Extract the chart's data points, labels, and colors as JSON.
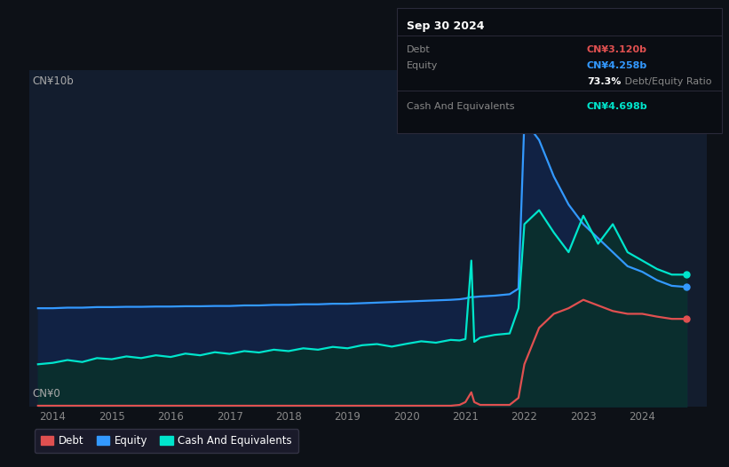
{
  "background_color": "#0d1117",
  "chart_bg_color": "#131d2e",
  "y_label_top": "CN¥10b",
  "y_label_bottom": "CN¥0",
  "x_ticks": [
    "2014",
    "2015",
    "2016",
    "2017",
    "2018",
    "2019",
    "2020",
    "2021",
    "2022",
    "2023",
    "2024"
  ],
  "legend": [
    {
      "label": "Debt",
      "color": "#e05050"
    },
    {
      "label": "Equity",
      "color": "#3399ff"
    },
    {
      "label": "Cash And Equivalents",
      "color": "#00e5cc"
    }
  ],
  "debt_color": "#e05050",
  "equity_color": "#3399ff",
  "cash_color": "#00e5cc",
  "tooltip": {
    "date": "Sep 30 2024",
    "debt_label": "Debt",
    "debt_value": "CN¥3.120b",
    "debt_color": "#e05050",
    "equity_label": "Equity",
    "equity_value": "CN¥4.258b",
    "equity_color": "#3399ff",
    "ratio_bold": "73.3%",
    "ratio_text": " Debt/Equity Ratio",
    "cash_label": "Cash And Equivalents",
    "cash_value": "CN¥4.698b",
    "cash_color": "#00e5cc"
  },
  "ylim": [
    0,
    12
  ],
  "xlim": [
    2013.6,
    2025.1
  ],
  "time_points": [
    2013.75,
    2014.0,
    2014.25,
    2014.5,
    2014.75,
    2015.0,
    2015.25,
    2015.5,
    2015.75,
    2016.0,
    2016.25,
    2016.5,
    2016.75,
    2017.0,
    2017.25,
    2017.5,
    2017.75,
    2018.0,
    2018.25,
    2018.5,
    2018.75,
    2019.0,
    2019.25,
    2019.5,
    2019.75,
    2020.0,
    2020.25,
    2020.5,
    2020.75,
    2020.9,
    2021.0,
    2021.1,
    2021.15,
    2021.25,
    2021.5,
    2021.75,
    2021.9,
    2022.0,
    2022.25,
    2022.5,
    2022.75,
    2023.0,
    2023.25,
    2023.5,
    2023.75,
    2024.0,
    2024.25,
    2024.5,
    2024.75
  ],
  "debt_values": [
    0.02,
    0.02,
    0.02,
    0.02,
    0.02,
    0.02,
    0.02,
    0.02,
    0.02,
    0.02,
    0.02,
    0.02,
    0.02,
    0.02,
    0.02,
    0.02,
    0.02,
    0.02,
    0.02,
    0.02,
    0.02,
    0.02,
    0.02,
    0.02,
    0.02,
    0.02,
    0.02,
    0.02,
    0.02,
    0.05,
    0.15,
    0.5,
    0.15,
    0.05,
    0.05,
    0.05,
    0.3,
    1.5,
    2.8,
    3.3,
    3.5,
    3.8,
    3.6,
    3.4,
    3.3,
    3.3,
    3.2,
    3.12,
    3.12
  ],
  "equity_values": [
    3.5,
    3.5,
    3.52,
    3.52,
    3.54,
    3.54,
    3.55,
    3.55,
    3.56,
    3.56,
    3.57,
    3.57,
    3.58,
    3.58,
    3.6,
    3.6,
    3.62,
    3.62,
    3.64,
    3.64,
    3.66,
    3.66,
    3.68,
    3.7,
    3.72,
    3.74,
    3.76,
    3.78,
    3.8,
    3.82,
    3.85,
    3.9,
    3.9,
    3.92,
    3.95,
    4.0,
    4.2,
    10.2,
    9.5,
    8.2,
    7.2,
    6.5,
    6.0,
    5.5,
    5.0,
    4.8,
    4.5,
    4.3,
    4.258
  ],
  "cash_values": [
    1.5,
    1.55,
    1.65,
    1.58,
    1.72,
    1.68,
    1.78,
    1.72,
    1.82,
    1.76,
    1.88,
    1.82,
    1.93,
    1.87,
    1.97,
    1.92,
    2.02,
    1.97,
    2.07,
    2.02,
    2.12,
    2.07,
    2.18,
    2.22,
    2.13,
    2.23,
    2.32,
    2.27,
    2.37,
    2.35,
    2.4,
    5.2,
    2.3,
    2.45,
    2.55,
    2.6,
    3.5,
    6.5,
    7.0,
    6.2,
    5.5,
    6.8,
    5.8,
    6.5,
    5.5,
    5.2,
    4.9,
    4.7,
    4.698
  ]
}
